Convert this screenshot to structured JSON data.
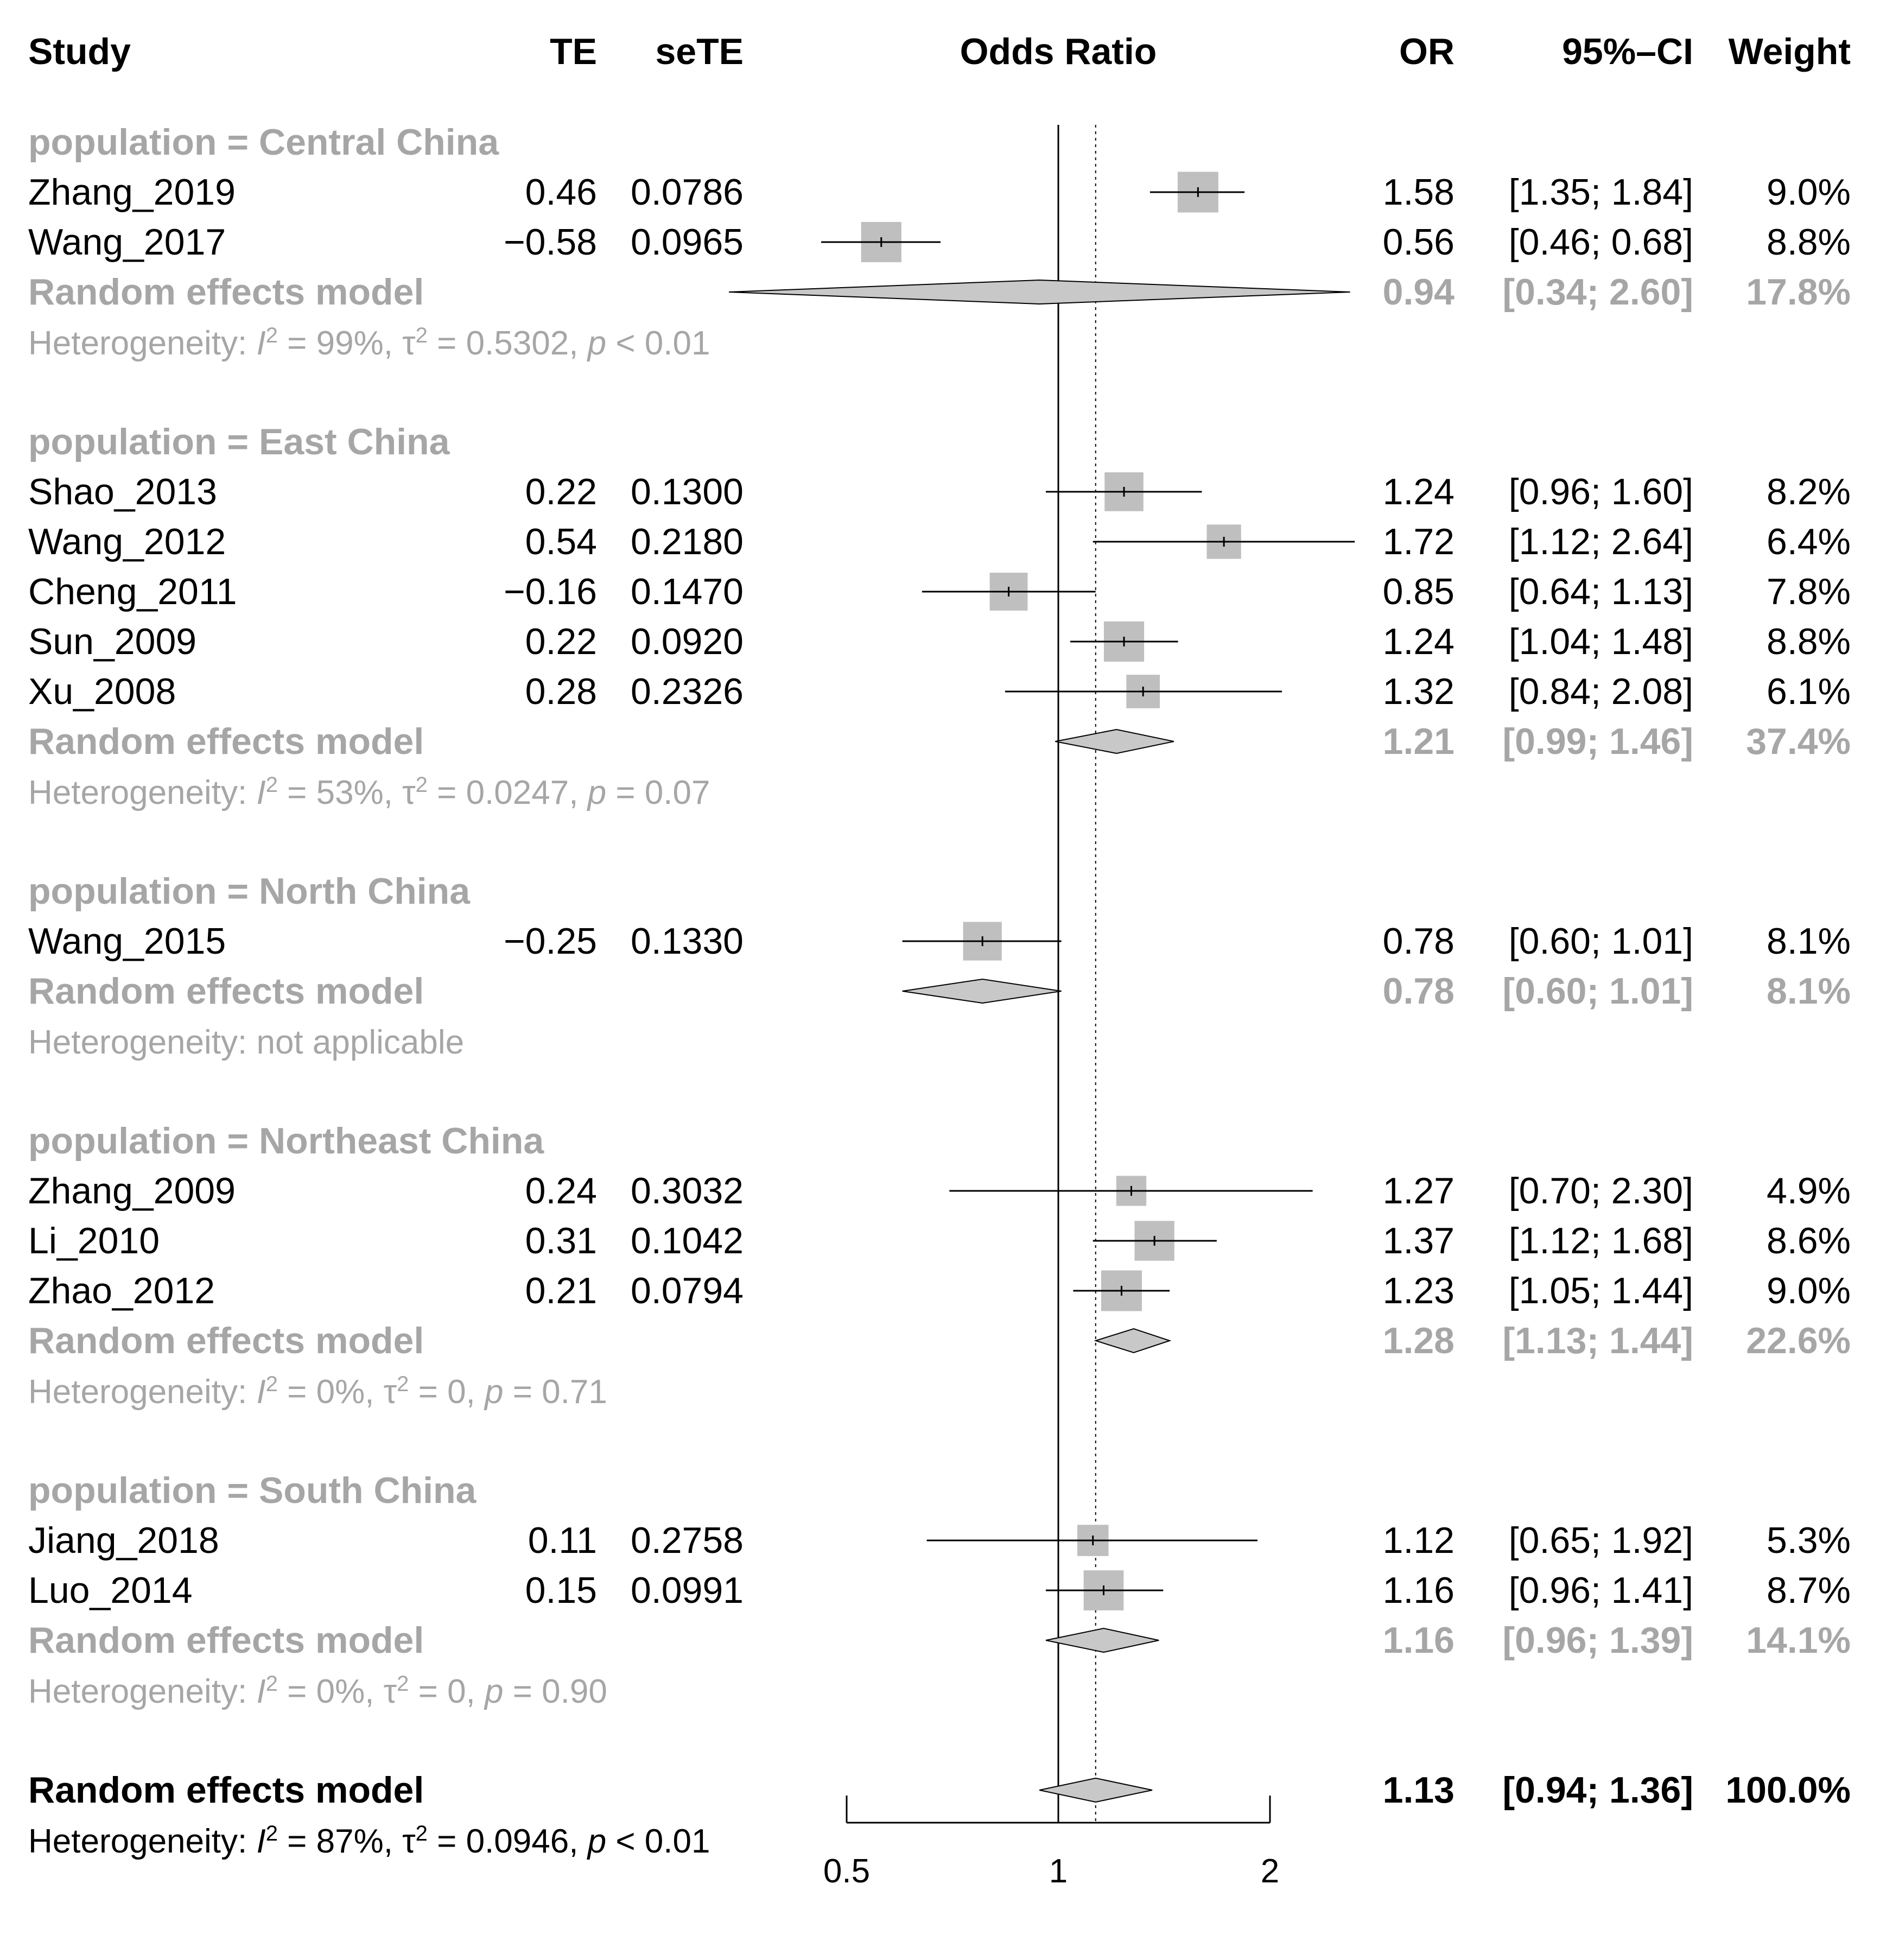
{
  "chart_data": {
    "type": "forest",
    "title": "Odds Ratio",
    "columns": {
      "study": "Study",
      "te": "TE",
      "sete": "seTE",
      "plot": "Odds Ratio",
      "or": "OR",
      "ci": "95%–CI",
      "weight": "Weight"
    },
    "xaxis": {
      "scale": "log",
      "range": [
        0.5,
        2
      ],
      "ticks": [
        0.5,
        1,
        2
      ],
      "tick_labels": [
        "0.5",
        "1",
        "2"
      ],
      "null_value": 1,
      "overall_reference": 1.13
    },
    "groups": [
      {
        "label": "population = Central China",
        "studies": [
          {
            "name": "Zhang_2019",
            "te": "0.46",
            "sete": "0.0786",
            "or": 1.58,
            "lo": 1.35,
            "hi": 1.84,
            "ci": "[1.35; 1.84]",
            "weight": "9.0%",
            "w": 9.0
          },
          {
            "name": "Wang_2017",
            "te": "−0.58",
            "sete": "0.0965",
            "or": 0.56,
            "lo": 0.46,
            "hi": 0.68,
            "ci": "[0.46; 0.68]",
            "weight": "8.8%",
            "w": 8.8
          }
        ],
        "model": {
          "label": "Random effects model",
          "or": 0.94,
          "lo": 0.34,
          "hi": 2.6,
          "ci": "[0.34; 2.60]",
          "weight": "17.8%"
        },
        "heterogeneity": {
          "prefix": "Heterogeneity: ",
          "i2": "99%",
          "tau2": "0.5302",
          "p_op": "<",
          "p": "0.01"
        }
      },
      {
        "label": "population = East China",
        "studies": [
          {
            "name": "Shao_2013",
            "te": "0.22",
            "sete": "0.1300",
            "or": 1.24,
            "lo": 0.96,
            "hi": 1.6,
            "ci": "[0.96; 1.60]",
            "weight": "8.2%",
            "w": 8.2
          },
          {
            "name": "Wang_2012",
            "te": "0.54",
            "sete": "0.2180",
            "or": 1.72,
            "lo": 1.12,
            "hi": 2.64,
            "ci": "[1.12; 2.64]",
            "weight": "6.4%",
            "w": 6.4
          },
          {
            "name": "Cheng_2011",
            "te": "−0.16",
            "sete": "0.1470",
            "or": 0.85,
            "lo": 0.64,
            "hi": 1.13,
            "ci": "[0.64; 1.13]",
            "weight": "7.8%",
            "w": 7.8
          },
          {
            "name": "Sun_2009",
            "te": "0.22",
            "sete": "0.0920",
            "or": 1.24,
            "lo": 1.04,
            "hi": 1.48,
            "ci": "[1.04; 1.48]",
            "weight": "8.8%",
            "w": 8.8
          },
          {
            "name": "Xu_2008",
            "te": "0.28",
            "sete": "0.2326",
            "or": 1.32,
            "lo": 0.84,
            "hi": 2.08,
            "ci": "[0.84; 2.08]",
            "weight": "6.1%",
            "w": 6.1
          }
        ],
        "model": {
          "label": "Random effects model",
          "or": 1.21,
          "lo": 0.99,
          "hi": 1.46,
          "ci": "[0.99; 1.46]",
          "weight": "37.4%"
        },
        "heterogeneity": {
          "prefix": "Heterogeneity: ",
          "i2": "53%",
          "tau2": "0.0247",
          "p_op": "=",
          "p": "0.07"
        }
      },
      {
        "label": "population = North China",
        "studies": [
          {
            "name": "Wang_2015",
            "te": "−0.25",
            "sete": "0.1330",
            "or": 0.78,
            "lo": 0.6,
            "hi": 1.01,
            "ci": "[0.60; 1.01]",
            "weight": "8.1%",
            "w": 8.1
          }
        ],
        "model": {
          "label": "Random effects model",
          "or": 0.78,
          "lo": 0.6,
          "hi": 1.01,
          "ci": "[0.60; 1.01]",
          "weight": "8.1%"
        },
        "heterogeneity": {
          "text": "Heterogeneity: not applicable"
        }
      },
      {
        "label": "population = Northeast China",
        "studies": [
          {
            "name": "Zhang_2009",
            "te": "0.24",
            "sete": "0.3032",
            "or": 1.27,
            "lo": 0.7,
            "hi": 2.3,
            "ci": "[0.70; 2.30]",
            "weight": "4.9%",
            "w": 4.9
          },
          {
            "name": "Li_2010",
            "te": "0.31",
            "sete": "0.1042",
            "or": 1.37,
            "lo": 1.12,
            "hi": 1.68,
            "ci": "[1.12; 1.68]",
            "weight": "8.6%",
            "w": 8.6
          },
          {
            "name": "Zhao_2012",
            "te": "0.21",
            "sete": "0.0794",
            "or": 1.23,
            "lo": 1.05,
            "hi": 1.44,
            "ci": "[1.05; 1.44]",
            "weight": "9.0%",
            "w": 9.0
          }
        ],
        "model": {
          "label": "Random effects model",
          "or": 1.28,
          "lo": 1.13,
          "hi": 1.44,
          "ci": "[1.13; 1.44]",
          "weight": "22.6%"
        },
        "heterogeneity": {
          "prefix": "Heterogeneity: ",
          "i2": "0%",
          "tau2": "0",
          "p_op": "=",
          "p": "0.71"
        }
      },
      {
        "label": "population = South China",
        "studies": [
          {
            "name": "Jiang_2018",
            "te": "0.11",
            "sete": "0.2758",
            "or": 1.12,
            "lo": 0.65,
            "hi": 1.92,
            "ci": "[0.65; 1.92]",
            "weight": "5.3%",
            "w": 5.3
          },
          {
            "name": "Luo_2014",
            "te": "0.15",
            "sete": "0.0991",
            "or": 1.16,
            "lo": 0.96,
            "hi": 1.41,
            "ci": "[0.96; 1.41]",
            "weight": "8.7%",
            "w": 8.7
          }
        ],
        "model": {
          "label": "Random effects model",
          "or": 1.16,
          "lo": 0.96,
          "hi": 1.39,
          "ci": "[0.96; 1.39]",
          "weight": "14.1%"
        },
        "heterogeneity": {
          "prefix": "Heterogeneity: ",
          "i2": "0%",
          "tau2": "0",
          "p_op": "=",
          "p": "0.90"
        }
      }
    ],
    "overall": {
      "label": "Random effects model",
      "or": 1.13,
      "lo": 0.94,
      "hi": 1.36,
      "ci": "[0.94; 1.36]",
      "weight": "100.0%",
      "heterogeneity": {
        "prefix": "Heterogeneity: ",
        "i2": "87%",
        "tau2": "0.0946",
        "p_op": "<",
        "p": "0.01"
      }
    },
    "colors": {
      "text": "#000000",
      "subgroup_text": "#a6a6a6",
      "box_fill": "#bfbfbf",
      "diamond_fill": "#c8c8c8",
      "line": "#000000"
    }
  }
}
